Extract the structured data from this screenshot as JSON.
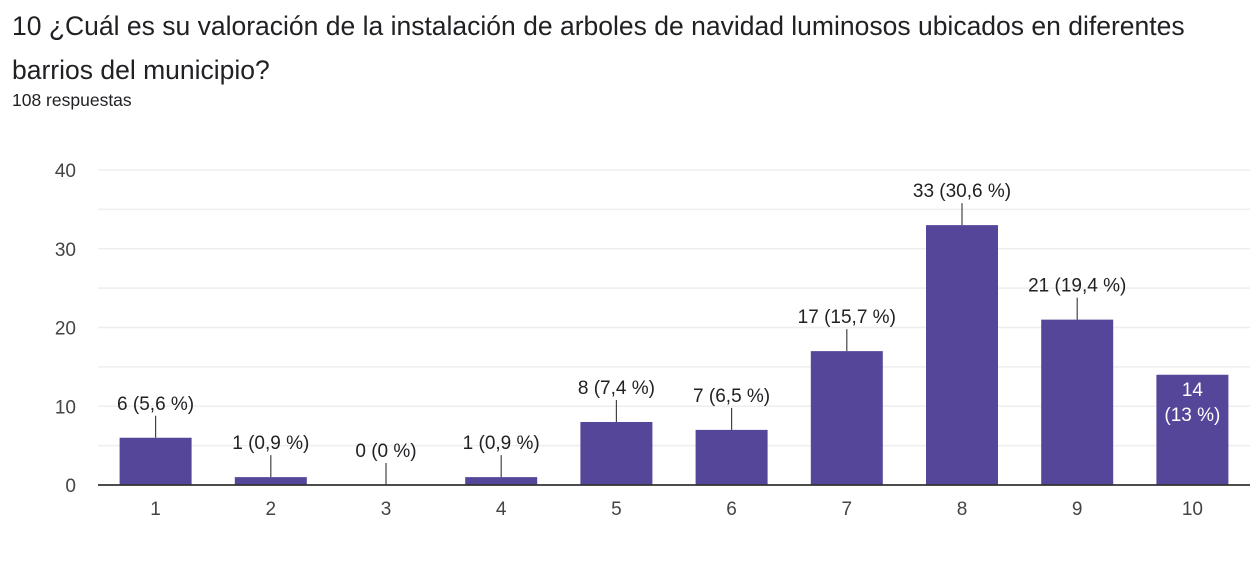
{
  "question": {
    "title": "10 ¿Cuál es su valoración de la instalación de arboles de navidad luminosos ubicados en diferentes barrios del municipio?",
    "responses": "108 respuestas"
  },
  "colors": {
    "bar": "#55469a",
    "gridline": "#eeeeee",
    "axis": "#333333",
    "leader": "#444444"
  },
  "chart_data": {
    "type": "bar",
    "categories": [
      "1",
      "2",
      "3",
      "4",
      "5",
      "6",
      "7",
      "8",
      "9",
      "10"
    ],
    "values": [
      6,
      1,
      0,
      1,
      8,
      7,
      17,
      33,
      21,
      14
    ],
    "labels": [
      "6 (5,6 %)",
      "1 (0,9 %)",
      "0 (0 %)",
      "1 (0,9 %)",
      "8 (7,4 %)",
      "7 (6,5 %)",
      "17 (15,7 %)",
      "33 (30,6 %)",
      "21 (19,4 %)",
      "14 (13 %)"
    ],
    "ylim": [
      0,
      40
    ],
    "yticks": [
      "0",
      "10",
      "20",
      "30",
      "40"
    ],
    "grid": true,
    "xlabel": "",
    "ylabel": ""
  }
}
